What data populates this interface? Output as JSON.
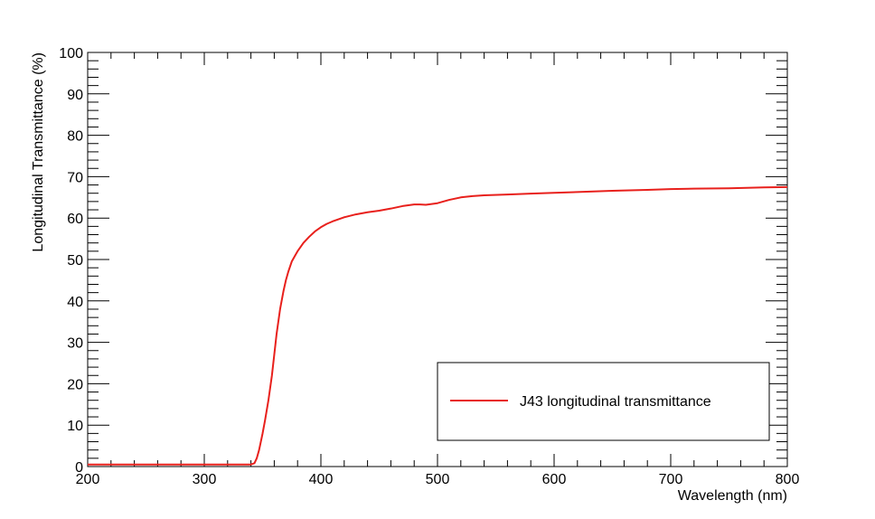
{
  "chart_data": {
    "type": "line",
    "title": "",
    "xlabel": "Wavelength (nm)",
    "ylabel": "Longitudinal Transmittance (%)",
    "xlim": [
      200,
      800
    ],
    "ylim": [
      0,
      100
    ],
    "x_ticks": [
      "200",
      "300",
      "400",
      "500",
      "600",
      "700",
      "800"
    ],
    "y_ticks": [
      "0",
      "10",
      "20",
      "30",
      "40",
      "50",
      "60",
      "70",
      "80",
      "90",
      "100"
    ],
    "legend_position": "bottom-right",
    "grid": false,
    "series": [
      {
        "name": "J43 longitudinal transmittance",
        "color": "#e8201c",
        "x": [
          200,
          300,
          340,
          343,
          345,
          347,
          350,
          352,
          355,
          358,
          360,
          362,
          365,
          368,
          370,
          372,
          375,
          378,
          380,
          385,
          390,
          395,
          400,
          405,
          410,
          420,
          430,
          440,
          450,
          460,
          470,
          480,
          485,
          490,
          500,
          510,
          520,
          530,
          540,
          560,
          580,
          600,
          620,
          650,
          680,
          700,
          720,
          750,
          780,
          800
        ],
        "values": [
          0.5,
          0.5,
          0.5,
          0.8,
          2.0,
          4.0,
          8.0,
          11.0,
          16.0,
          22.0,
          27.0,
          32.0,
          38.0,
          42.5,
          45.0,
          47.0,
          49.5,
          51.0,
          52.0,
          54.0,
          55.5,
          56.8,
          57.8,
          58.6,
          59.2,
          60.2,
          60.9,
          61.4,
          61.8,
          62.3,
          62.9,
          63.3,
          63.3,
          63.2,
          63.6,
          64.4,
          65.0,
          65.3,
          65.5,
          65.7,
          65.9,
          66.1,
          66.3,
          66.6,
          66.8,
          67.0,
          67.1,
          67.2,
          67.4,
          67.5
        ]
      }
    ]
  }
}
